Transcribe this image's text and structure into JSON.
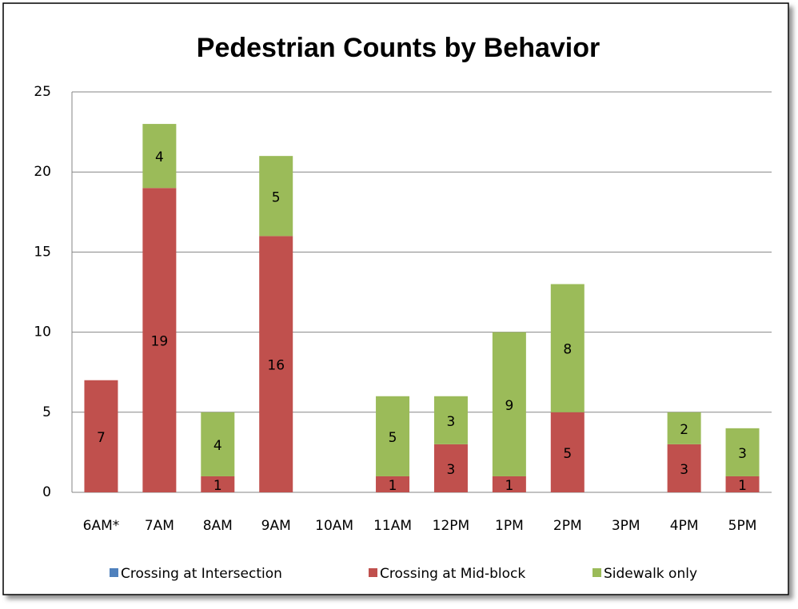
{
  "chart_data": {
    "type": "bar",
    "stacked": true,
    "title": "Pedestrian Counts by Behavior",
    "categories": [
      "6AM*",
      "7AM",
      "8AM",
      "9AM",
      "10AM",
      "11AM",
      "12PM",
      "1PM",
      "2PM",
      "3PM",
      "4PM",
      "5PM"
    ],
    "series": [
      {
        "name": "Crossing at Intersection",
        "color": "#4f81bd",
        "values": [
          null,
          null,
          null,
          null,
          null,
          null,
          null,
          null,
          null,
          null,
          null,
          null
        ]
      },
      {
        "name": "Crossing at Mid-block",
        "color": "#c0504d",
        "values": [
          7,
          19,
          1,
          16,
          null,
          1,
          3,
          1,
          5,
          null,
          3,
          1
        ]
      },
      {
        "name": "Sidewalk only",
        "color": "#9bbb59",
        "values": [
          null,
          4,
          4,
          5,
          null,
          5,
          3,
          9,
          8,
          null,
          2,
          3
        ]
      }
    ],
    "ylim": [
      0,
      25
    ],
    "yticks": [
      0,
      5,
      10,
      15,
      20,
      25
    ],
    "grid": true,
    "legend": "bottom"
  }
}
